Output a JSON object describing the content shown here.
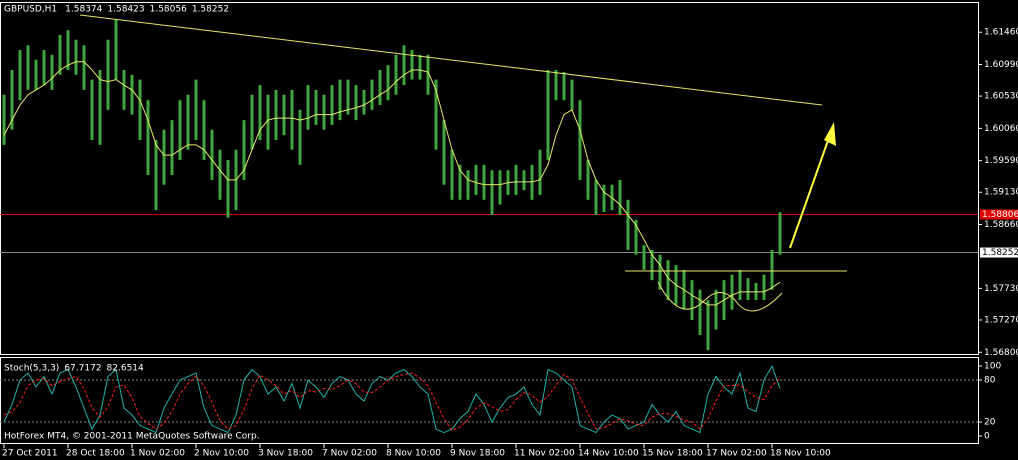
{
  "chart_data": [
    {
      "type": "range",
      "title": "GBPUSD,H1",
      "title_values": [
        1.58374,
        1.58423,
        1.58056,
        1.58252
      ],
      "caption": "HotForex MT4, © 2001-2011 MetaQuotes Software Corp.",
      "color": "#3fa63f",
      "high": [
        1.6055,
        1.6091,
        1.612,
        1.6127,
        1.6106,
        1.612,
        1.6113,
        1.6142,
        1.6149,
        1.6135,
        1.6127,
        1.6077,
        1.6091,
        1.6135,
        1.6164,
        1.6091,
        1.6084,
        1.6077,
        1.6047,
        1.5989,
        1.6004,
        1.6018,
        1.6047,
        1.6055,
        1.6077,
        1.6047,
        1.6004,
        1.5975,
        1.596,
        1.5975,
        1.6018,
        1.6055,
        1.6069,
        1.6055,
        1.6062,
        1.6055,
        1.6062,
        1.6033,
        1.6069,
        1.6062,
        1.6055,
        1.6069,
        1.6077,
        1.6077,
        1.6069,
        1.6062,
        1.6077,
        1.6091,
        1.6098,
        1.6113,
        1.6127,
        1.612,
        1.6113,
        1.6113,
        1.6077,
        1.6018,
        1.5975,
        1.5953,
        1.5945,
        1.5953,
        1.5953,
        1.5945,
        1.5945,
        1.5945,
        1.5953,
        1.5945,
        1.5953,
        1.5975,
        1.6091,
        1.6091,
        1.6088,
        1.6077,
        1.6047,
        1.596,
        1.5931,
        1.5924,
        1.5924,
        1.5931,
        1.5902,
        1.5873,
        1.5836,
        1.5829,
        1.5822,
        1.5814,
        1.5807,
        1.58,
        1.5785,
        1.5771,
        1.5756,
        1.5771,
        1.5785,
        1.5793,
        1.58,
        1.5788,
        1.5781,
        1.5793,
        1.5829,
        1.5884
      ],
      "low": [
        1.5982,
        1.6004,
        1.6047,
        1.6062,
        1.6062,
        1.6069,
        1.6062,
        1.6084,
        1.6091,
        1.6084,
        1.6062,
        1.5989,
        1.5982,
        1.6033,
        1.6077,
        1.6033,
        1.6026,
        1.5989,
        1.5938,
        1.5887,
        1.5924,
        1.5938,
        1.596,
        1.5975,
        1.5989,
        1.596,
        1.5931,
        1.5902,
        1.5876,
        1.5887,
        1.5931,
        1.5975,
        1.5989,
        1.5975,
        1.5989,
        1.5996,
        1.5975,
        1.5953,
        1.6004,
        1.6011,
        1.6004,
        1.6011,
        1.6018,
        1.6026,
        1.6018,
        1.6026,
        1.6033,
        1.604,
        1.6047,
        1.6055,
        1.6069,
        1.6077,
        1.6077,
        1.6055,
        1.5975,
        1.5924,
        1.5902,
        1.5902,
        1.5902,
        1.5909,
        1.5902,
        1.588,
        1.5895,
        1.5909,
        1.5909,
        1.5916,
        1.5902,
        1.5909,
        1.596,
        1.6047,
        1.6047,
        1.6033,
        1.5931,
        1.5902,
        1.588,
        1.5884,
        1.5887,
        1.588,
        1.5829,
        1.5822,
        1.58,
        1.5785,
        1.5771,
        1.5756,
        1.5749,
        1.5742,
        1.5727,
        1.5705,
        1.5683,
        1.5713,
        1.5727,
        1.5742,
        1.5756,
        1.5756,
        1.5756,
        1.5756,
        1.5771,
        1.5822
      ],
      "ma": {
        "color": "#e8e86a",
        "values": [
          1.5996,
          1.6018,
          1.604,
          1.6055,
          1.6062,
          1.6069,
          1.6079,
          1.6091,
          1.6098,
          1.6103,
          1.6103,
          1.6091,
          1.6077,
          1.6074,
          1.6077,
          1.6069,
          1.6062,
          1.6047,
          1.6018,
          1.5982,
          1.5967,
          1.5967,
          1.5975,
          1.5982,
          1.5982,
          1.5975,
          1.596,
          1.5945,
          1.5931,
          1.5931,
          1.5945,
          1.5975,
          1.6004,
          1.6018,
          1.6021,
          1.6021,
          1.6021,
          1.6018,
          1.6021,
          1.6026,
          1.6026,
          1.6026,
          1.603,
          1.6033,
          1.6036,
          1.604,
          1.6047,
          1.6055,
          1.6062,
          1.6074,
          1.6084,
          1.6091,
          1.6091,
          1.6088,
          1.6062,
          1.6018,
          1.5975,
          1.5945,
          1.5931,
          1.5927,
          1.5924,
          1.5924,
          1.5924,
          1.5927,
          1.5928,
          1.5928,
          1.5928,
          1.5931,
          1.5953,
          1.5996,
          1.6026,
          1.6033,
          1.6004,
          1.596,
          1.5931,
          1.5913,
          1.5905,
          1.5895,
          1.588,
          1.5865,
          1.5844,
          1.5822,
          1.5807,
          1.5788,
          1.5778,
          1.5771,
          1.5763,
          1.5756,
          1.5749,
          1.5749,
          1.5756,
          1.5763,
          1.5768,
          1.5768,
          1.5768,
          1.5768,
          1.5774,
          1.5782
        ]
      },
      "levels": [
        {
          "value": 1.58806,
          "color": "#e00000"
        }
      ],
      "xlim": [
        -0.5,
        121.75
      ],
      "xticks": [
        {
          "value": 0,
          "label": "27 Oct 2011"
        },
        {
          "value": 8,
          "label": "28 Oct 18:00"
        },
        {
          "value": 16,
          "label": "1 Nov 02:00"
        },
        {
          "value": 24,
          "label": "2 Nov 10:00"
        },
        {
          "value": 32,
          "label": "3 Nov 18:00"
        },
        {
          "value": 40,
          "label": "7 Nov 02:00"
        },
        {
          "value": 48,
          "label": "8 Nov 10:00"
        },
        {
          "value": 56,
          "label": "9 Nov 18:00"
        },
        {
          "value": 64,
          "label": "11 Nov 02:00"
        },
        {
          "value": 72,
          "label": "14 Nov 10:00"
        },
        {
          "value": 80,
          "label": "15 Nov 18:00"
        },
        {
          "value": 88,
          "label": "17 Nov 02:00"
        },
        {
          "value": 96,
          "label": "18 Nov 10:00"
        }
      ],
      "ylim": [
        1.5676,
        1.619
      ],
      "yticks": [
        {
          "value": 1.6146,
          "label": "1.61460"
        },
        {
          "value": 1.6099,
          "label": "1.60990"
        },
        {
          "value": 1.6053,
          "label": "1.60530"
        },
        {
          "value": 1.6006,
          "label": "1.60060"
        },
        {
          "value": 1.5959,
          "label": "1.59590"
        },
        {
          "value": 1.5913,
          "label": "1.59130"
        },
        {
          "value": 1.5866,
          "label": "1.58660"
        },
        {
          "value": 1.5773,
          "label": "1.57730"
        },
        {
          "value": 1.5727,
          "label": "1.57270"
        },
        {
          "value": 1.568,
          "label": "1.56800"
        }
      ]
    },
    {
      "type": "line",
      "title": "Stoch(5,3,3)",
      "series": [
        {
          "color": "#20b2aa",
          "values": [
            20,
            45,
            80,
            90,
            70,
            85,
            60,
            90,
            95,
            70,
            40,
            10,
            30,
            85,
            95,
            40,
            30,
            15,
            10,
            5,
            40,
            60,
            80,
            85,
            90,
            40,
            15,
            10,
            5,
            30,
            80,
            95,
            85,
            60,
            70,
            50,
            75,
            40,
            80,
            70,
            55,
            75,
            85,
            80,
            60,
            50,
            75,
            85,
            80,
            90,
            95,
            85,
            70,
            60,
            10,
            5,
            10,
            25,
            35,
            60,
            45,
            20,
            40,
            55,
            60,
            70,
            45,
            30,
            95,
            90,
            80,
            70,
            15,
            10,
            5,
            20,
            30,
            25,
            10,
            15,
            20,
            45,
            30,
            20,
            35,
            15,
            10,
            5,
            60,
            85,
            70,
            60,
            90,
            40,
            35,
            80,
            100,
            67.7172
          ]
        },
        {
          "color": "#ff2020",
          "dashed": true,
          "values": [
            30,
            35,
            48,
            72,
            80,
            82,
            72,
            78,
            82,
            85,
            68,
            40,
            27,
            42,
            70,
            73,
            55,
            28,
            18,
            10,
            18,
            35,
            60,
            75,
            85,
            72,
            48,
            22,
            10,
            15,
            38,
            68,
            87,
            80,
            72,
            60,
            65,
            55,
            65,
            63,
            68,
            67,
            72,
            80,
            75,
            63,
            62,
            70,
            80,
            85,
            88,
            90,
            83,
            72,
            48,
            25,
            8,
            13,
            23,
            40,
            47,
            42,
            35,
            38,
            52,
            62,
            58,
            48,
            57,
            72,
            88,
            80,
            55,
            32,
            10,
            12,
            18,
            25,
            22,
            17,
            15,
            27,
            32,
            32,
            28,
            23,
            20,
            10,
            25,
            50,
            72,
            72,
            73,
            63,
            55,
            52,
            72,
            82.6514
          ]
        }
      ],
      "levels": [
        80,
        20
      ],
      "ylim": [
        -11.4,
        112.9
      ],
      "yticks": [
        100,
        80,
        20,
        0
      ]
    }
  ]
}
